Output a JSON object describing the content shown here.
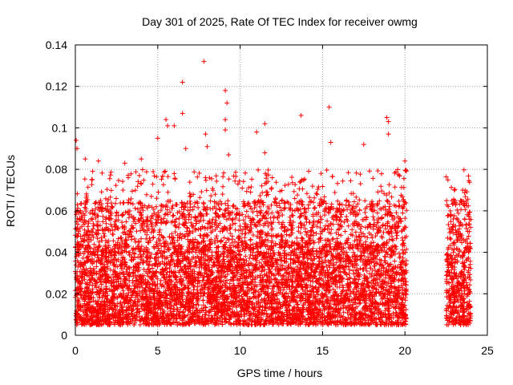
{
  "chart_data": {
    "type": "scatter",
    "title": "Day 301 of 2025, Rate Of TEC Index for receiver owmg",
    "xlabel": "GPS time / hours",
    "ylabel": "ROTI / TECUs",
    "xlim": [
      0,
      25
    ],
    "ylim": [
      0,
      0.14
    ],
    "xticks": [
      0,
      5,
      10,
      15,
      20,
      25
    ],
    "yticks": [
      0,
      0.02,
      0.04,
      0.06,
      0.08,
      0.1,
      0.12,
      0.14
    ],
    "xtick_labels": [
      "0",
      "5",
      "10",
      "15",
      "20",
      "25"
    ],
    "ytick_labels": [
      "0",
      "0.02",
      "0.04",
      "0.06",
      "0.08",
      "0.1",
      "0.12",
      "0.14"
    ],
    "grid": true,
    "marker": "+",
    "series_color": "#ff0000",
    "data_coverage_hours": [
      [
        0,
        20.1
      ],
      [
        22.5,
        24.0
      ]
    ],
    "typical_range": [
      0.005,
      0.045
    ],
    "outliers": [
      {
        "x": 0.05,
        "y": 0.094
      },
      {
        "x": 0.1,
        "y": 0.09
      },
      {
        "x": 0.6,
        "y": 0.085
      },
      {
        "x": 1.4,
        "y": 0.084
      },
      {
        "x": 3.0,
        "y": 0.083
      },
      {
        "x": 4.0,
        "y": 0.085
      },
      {
        "x": 5.0,
        "y": 0.095
      },
      {
        "x": 5.5,
        "y": 0.104
      },
      {
        "x": 5.6,
        "y": 0.101
      },
      {
        "x": 6.0,
        "y": 0.101
      },
      {
        "x": 6.5,
        "y": 0.107
      },
      {
        "x": 6.5,
        "y": 0.122
      },
      {
        "x": 6.7,
        "y": 0.09
      },
      {
        "x": 7.8,
        "y": 0.132
      },
      {
        "x": 7.9,
        "y": 0.097
      },
      {
        "x": 8.0,
        "y": 0.091
      },
      {
        "x": 9.1,
        "y": 0.118
      },
      {
        "x": 9.2,
        "y": 0.112
      },
      {
        "x": 9.1,
        "y": 0.104
      },
      {
        "x": 9.1,
        "y": 0.099
      },
      {
        "x": 9.3,
        "y": 0.087
      },
      {
        "x": 11.0,
        "y": 0.098
      },
      {
        "x": 11.5,
        "y": 0.102
      },
      {
        "x": 11.5,
        "y": 0.088
      },
      {
        "x": 13.7,
        "y": 0.106
      },
      {
        "x": 15.4,
        "y": 0.11
      },
      {
        "x": 15.5,
        "y": 0.093
      },
      {
        "x": 17.5,
        "y": 0.092
      },
      {
        "x": 18.9,
        "y": 0.105
      },
      {
        "x": 19.0,
        "y": 0.103
      },
      {
        "x": 19.0,
        "y": 0.097
      },
      {
        "x": 20.0,
        "y": 0.084
      },
      {
        "x": 23.0,
        "y": 0.07
      },
      {
        "x": 23.5,
        "y": 0.07
      }
    ]
  }
}
